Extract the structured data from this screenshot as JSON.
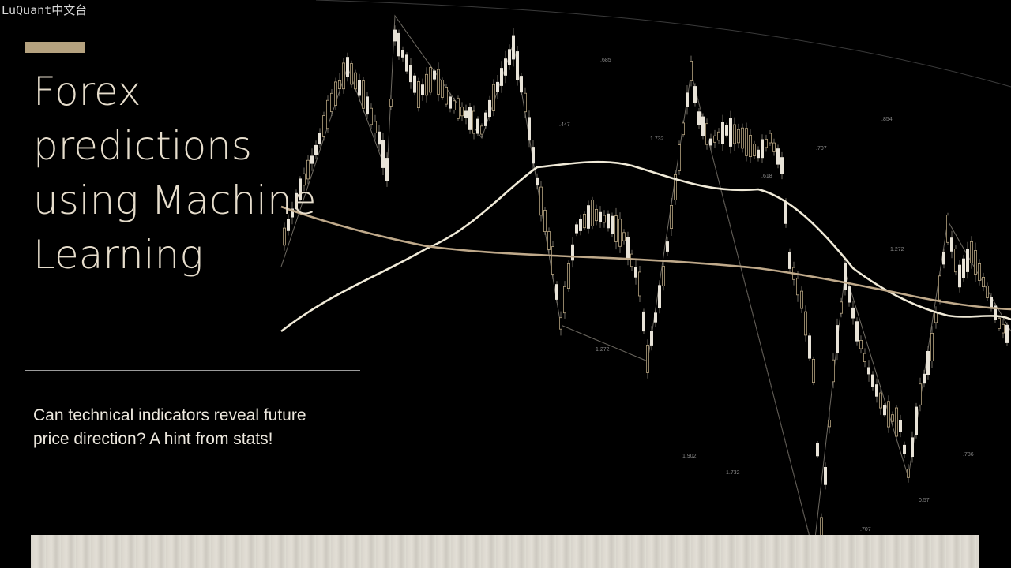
{
  "watermark": "LuQuant中文台",
  "slide": {
    "title_lines": [
      "Forex",
      "predictions",
      "using Machine",
      "Learning"
    ],
    "subtitle_lines": [
      "Can technical indicators reveal future",
      "price direction? A hint from stats!"
    ]
  },
  "chart_background": {
    "fib_labels": [
      ".685",
      ".447",
      "1.732",
      ".618",
      ".707",
      ".854",
      "1.272",
      "1.272",
      "1.902",
      "1.732",
      ".707",
      "0.57",
      ".786"
    ]
  },
  "colors": {
    "background": "#000000",
    "accent": "#b5a27f",
    "title": "#e6ddcc",
    "candle_up": "#e8e3d8",
    "candle_down": "#b5a27f",
    "ma_fast": "#f0ead8",
    "ma_slow": "#bfa98a"
  }
}
